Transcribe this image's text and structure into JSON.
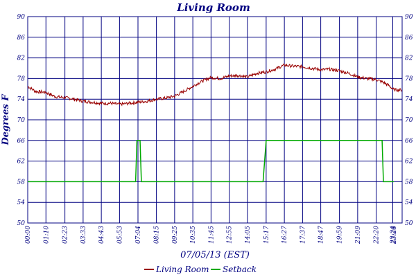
{
  "chart_data": {
    "type": "line",
    "title": "Living Room",
    "xlabel": "07/05/13 (EST)",
    "ylabel": "Degrees F",
    "ylim": [
      50,
      90
    ],
    "y_ticks": [
      50,
      54,
      58,
      62,
      66,
      70,
      74,
      78,
      82,
      86,
      90
    ],
    "x_ticks": [
      "00:00",
      "01:10",
      "02:23",
      "03:33",
      "04:43",
      "05:53",
      "07:04",
      "08:15",
      "09:25",
      "10:35",
      "11:45",
      "12:55",
      "14:05",
      "15:17",
      "16:27",
      "17:37",
      "18:47",
      "19:59",
      "21:09",
      "22:20",
      "23:24",
      "23:28"
    ],
    "grid": true,
    "legend_position": "bottom",
    "colors": {
      "axis": "#000080",
      "grid": "#000080"
    },
    "series": [
      {
        "name": "Living Room",
        "color": "#990000",
        "x": [
          "00:00",
          "00:30",
          "01:10",
          "01:45",
          "02:23",
          "03:00",
          "03:33",
          "04:10",
          "04:43",
          "05:20",
          "05:53",
          "06:30",
          "07:04",
          "07:40",
          "08:15",
          "08:50",
          "09:25",
          "10:00",
          "10:35",
          "11:10",
          "11:45",
          "12:20",
          "12:55",
          "13:30",
          "14:05",
          "14:40",
          "15:17",
          "15:50",
          "16:27",
          "17:00",
          "17:37",
          "18:10",
          "18:47",
          "19:20",
          "19:59",
          "20:35",
          "21:09",
          "21:45",
          "22:20",
          "22:50",
          "23:10",
          "23:28"
        ],
        "values": [
          76.5,
          75.5,
          75.3,
          74.5,
          74.3,
          74.0,
          73.6,
          73.4,
          73.2,
          73.2,
          73.0,
          73.2,
          73.4,
          73.6,
          74.0,
          74.2,
          74.6,
          75.5,
          76.5,
          77.5,
          78.2,
          78.0,
          78.5,
          78.6,
          78.3,
          79.0,
          79.3,
          79.8,
          80.6,
          80.4,
          80.3,
          80.0,
          79.7,
          79.8,
          79.5,
          79.0,
          78.3,
          78.0,
          77.8,
          77.2,
          76.6,
          75.8
        ]
      },
      {
        "name": "Setback",
        "color": "#00aa00",
        "x": [
          "00:00",
          "06:55",
          "07:00",
          "07:12",
          "07:17",
          "15:05",
          "15:17",
          "22:43",
          "22:48",
          "23:28"
        ],
        "values": [
          58,
          58,
          66,
          66,
          58,
          58,
          66,
          66,
          58,
          58
        ]
      }
    ]
  }
}
